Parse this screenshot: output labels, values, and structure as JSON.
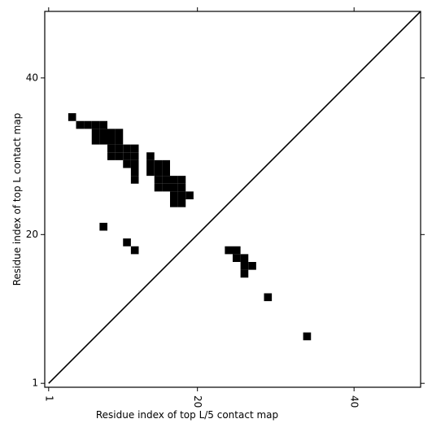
{
  "chart_data": {
    "type": "contact-map",
    "xlabel": "Residue index of top L/5 contact map",
    "ylabel": "Residue index of top L contact map",
    "xlim": [
      0.5,
      48.5
    ],
    "ylim": [
      0.5,
      48.5
    ],
    "xticks": [
      1,
      20,
      40
    ],
    "yticks": [
      1,
      20,
      40
    ],
    "color": "#000000",
    "x": [
      4,
      5,
      6,
      7,
      8,
      7,
      8,
      9,
      10,
      7,
      8,
      9,
      10,
      9,
      10,
      11,
      12,
      9,
      10,
      11,
      12,
      14,
      11,
      12,
      14,
      15,
      16,
      12,
      14,
      15,
      16,
      12,
      15,
      16,
      17,
      18,
      15,
      16,
      17,
      18,
      17,
      18,
      19,
      17,
      18,
      8,
      11,
      12,
      24,
      25,
      25,
      26,
      26,
      27,
      26,
      29,
      34
    ],
    "y": [
      35,
      34,
      34,
      34,
      34,
      33,
      33,
      33,
      33,
      32,
      32,
      32,
      32,
      31,
      31,
      31,
      31,
      30,
      30,
      30,
      30,
      30,
      29,
      29,
      29,
      29,
      29,
      28,
      28,
      28,
      28,
      27,
      27,
      27,
      27,
      27,
      26,
      26,
      26,
      26,
      25,
      25,
      25,
      24,
      24,
      21,
      19,
      18,
      18,
      18,
      17,
      17,
      16,
      16,
      15,
      12,
      7
    ]
  }
}
